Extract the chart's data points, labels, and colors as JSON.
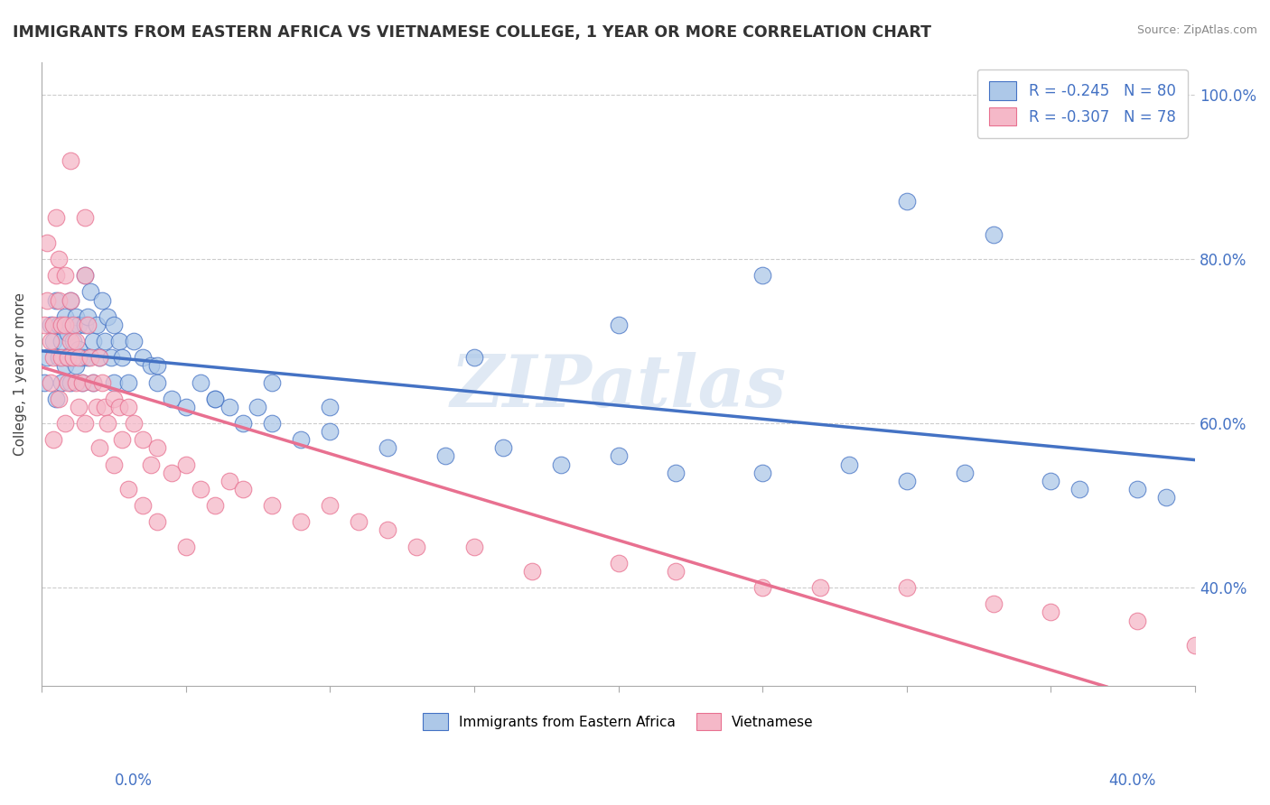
{
  "title": "IMMIGRANTS FROM EASTERN AFRICA VS VIETNAMESE COLLEGE, 1 YEAR OR MORE CORRELATION CHART",
  "source": "Source: ZipAtlas.com",
  "ylabel": "College, 1 year or more",
  "xlim": [
    0.0,
    0.4
  ],
  "ylim": [
    0.28,
    1.04
  ],
  "blue_R": -0.245,
  "blue_N": 80,
  "pink_R": -0.307,
  "pink_N": 78,
  "blue_color": "#adc8e8",
  "pink_color": "#f5b8c8",
  "blue_line_color": "#4472c4",
  "pink_line_color": "#e87090",
  "watermark": "ZIPatlas",
  "legend_label_blue": "Immigrants from Eastern Africa",
  "legend_label_pink": "Vietnamese",
  "blue_scatter_x": [
    0.001,
    0.002,
    0.003,
    0.004,
    0.005,
    0.005,
    0.006,
    0.006,
    0.007,
    0.007,
    0.008,
    0.008,
    0.009,
    0.009,
    0.01,
    0.01,
    0.01,
    0.011,
    0.011,
    0.012,
    0.012,
    0.013,
    0.013,
    0.014,
    0.014,
    0.015,
    0.015,
    0.016,
    0.016,
    0.017,
    0.018,
    0.018,
    0.019,
    0.02,
    0.021,
    0.022,
    0.023,
    0.024,
    0.025,
    0.025,
    0.027,
    0.028,
    0.03,
    0.032,
    0.035,
    0.038,
    0.04,
    0.045,
    0.05,
    0.055,
    0.06,
    0.065,
    0.07,
    0.075,
    0.08,
    0.09,
    0.1,
    0.12,
    0.14,
    0.16,
    0.18,
    0.2,
    0.22,
    0.25,
    0.28,
    0.3,
    0.32,
    0.35,
    0.36,
    0.38,
    0.39,
    0.33,
    0.3,
    0.25,
    0.2,
    0.15,
    0.1,
    0.08,
    0.06,
    0.04
  ],
  "blue_scatter_y": [
    0.65,
    0.68,
    0.72,
    0.7,
    0.75,
    0.63,
    0.68,
    0.72,
    0.65,
    0.7,
    0.73,
    0.67,
    0.71,
    0.68,
    0.75,
    0.72,
    0.65,
    0.7,
    0.68,
    0.73,
    0.67,
    0.72,
    0.69,
    0.68,
    0.65,
    0.78,
    0.72,
    0.73,
    0.68,
    0.76,
    0.7,
    0.65,
    0.72,
    0.68,
    0.75,
    0.7,
    0.73,
    0.68,
    0.65,
    0.72,
    0.7,
    0.68,
    0.65,
    0.7,
    0.68,
    0.67,
    0.65,
    0.63,
    0.62,
    0.65,
    0.63,
    0.62,
    0.6,
    0.62,
    0.6,
    0.58,
    0.59,
    0.57,
    0.56,
    0.57,
    0.55,
    0.56,
    0.54,
    0.54,
    0.55,
    0.53,
    0.54,
    0.53,
    0.52,
    0.52,
    0.51,
    0.83,
    0.87,
    0.78,
    0.72,
    0.68,
    0.62,
    0.65,
    0.63,
    0.67
  ],
  "pink_scatter_x": [
    0.001,
    0.002,
    0.002,
    0.003,
    0.003,
    0.004,
    0.004,
    0.005,
    0.005,
    0.006,
    0.006,
    0.007,
    0.007,
    0.008,
    0.008,
    0.009,
    0.009,
    0.01,
    0.01,
    0.011,
    0.011,
    0.012,
    0.012,
    0.013,
    0.013,
    0.014,
    0.015,
    0.015,
    0.016,
    0.017,
    0.018,
    0.019,
    0.02,
    0.021,
    0.022,
    0.023,
    0.025,
    0.027,
    0.028,
    0.03,
    0.032,
    0.035,
    0.038,
    0.04,
    0.045,
    0.05,
    0.055,
    0.06,
    0.065,
    0.07,
    0.08,
    0.09,
    0.1,
    0.11,
    0.12,
    0.13,
    0.15,
    0.17,
    0.2,
    0.22,
    0.25,
    0.27,
    0.3,
    0.33,
    0.35,
    0.38,
    0.4,
    0.004,
    0.006,
    0.008,
    0.01,
    0.015,
    0.02,
    0.025,
    0.03,
    0.035,
    0.04,
    0.05
  ],
  "pink_scatter_y": [
    0.72,
    0.75,
    0.82,
    0.65,
    0.7,
    0.72,
    0.68,
    0.85,
    0.78,
    0.8,
    0.75,
    0.72,
    0.68,
    0.78,
    0.72,
    0.68,
    0.65,
    0.75,
    0.7,
    0.72,
    0.68,
    0.7,
    0.65,
    0.68,
    0.62,
    0.65,
    0.85,
    0.78,
    0.72,
    0.68,
    0.65,
    0.62,
    0.68,
    0.65,
    0.62,
    0.6,
    0.63,
    0.62,
    0.58,
    0.62,
    0.6,
    0.58,
    0.55,
    0.57,
    0.54,
    0.55,
    0.52,
    0.5,
    0.53,
    0.52,
    0.5,
    0.48,
    0.5,
    0.48,
    0.47,
    0.45,
    0.45,
    0.42,
    0.43,
    0.42,
    0.4,
    0.4,
    0.4,
    0.38,
    0.37,
    0.36,
    0.33,
    0.58,
    0.63,
    0.6,
    0.92,
    0.6,
    0.57,
    0.55,
    0.52,
    0.5,
    0.48,
    0.45
  ]
}
